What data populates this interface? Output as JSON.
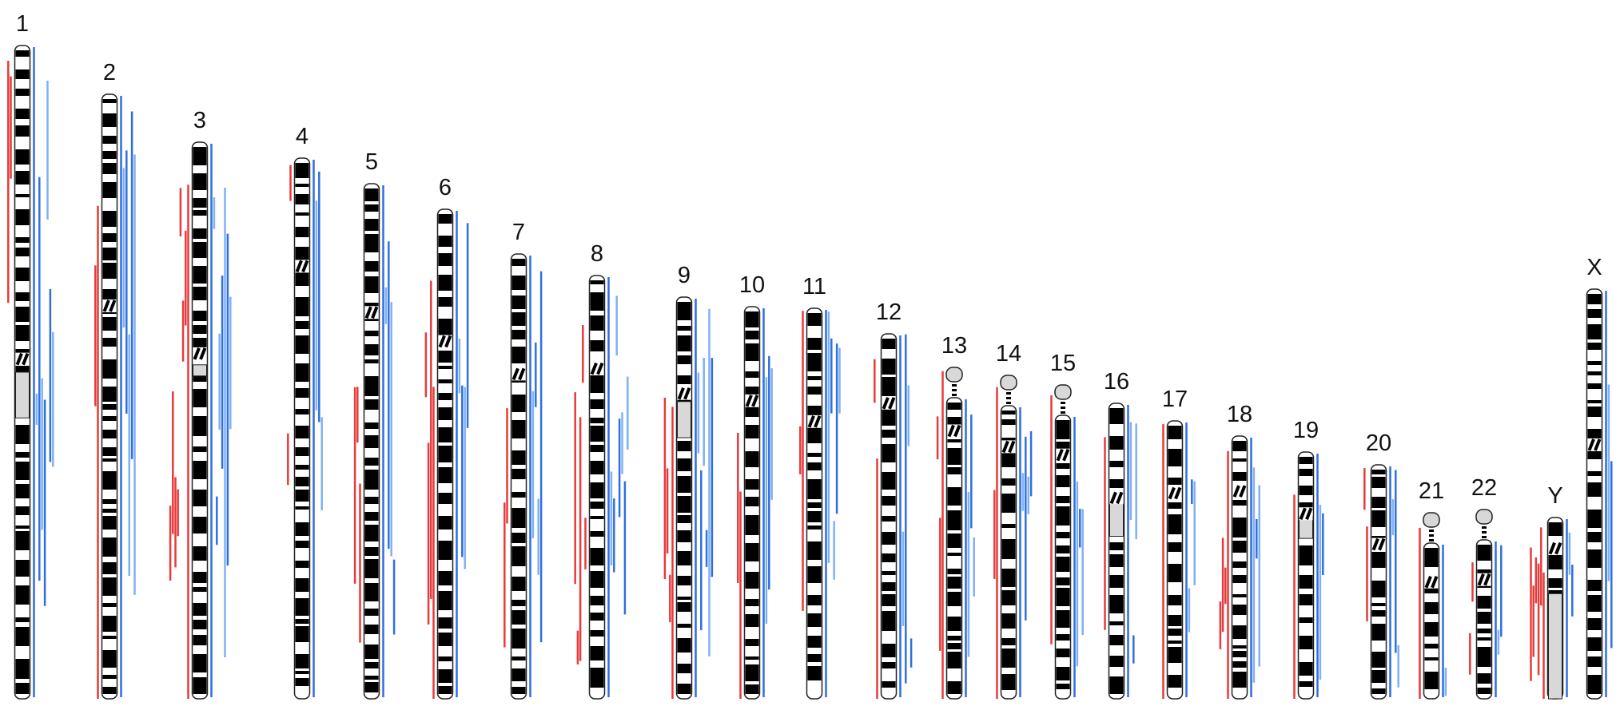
{
  "colors": {
    "loss": "#e83a3a",
    "gain_dark": "#2f6fe0",
    "gain_light": "#7fb0f5",
    "band": "#000000",
    "outline": "#222222",
    "heterochromatin": "#d8d8d8",
    "centromere_fill": "#ffffff"
  },
  "chromosomes": [
    {
      "label": "1",
      "loss_lines": 2,
      "gain_lines": 8
    },
    {
      "label": "2",
      "loss_lines": 2,
      "gain_lines": 6
    },
    {
      "label": "3",
      "loss_lines": 8,
      "gain_lines": 8
    },
    {
      "label": "4",
      "loss_lines": 2,
      "gain_lines": 4
    },
    {
      "label": "5",
      "loss_lines": 3,
      "gain_lines": 5
    },
    {
      "label": "6",
      "loss_lines": 4,
      "gain_lines": 5
    },
    {
      "label": "7",
      "loss_lines": 2,
      "gain_lines": 5
    },
    {
      "label": "8",
      "loss_lines": 5,
      "gain_lines": 8
    },
    {
      "label": "9",
      "loss_lines": 4,
      "gain_lines": 7
    },
    {
      "label": "10",
      "loss_lines": 2,
      "gain_lines": 4
    },
    {
      "label": "11",
      "loss_lines": 2,
      "gain_lines": 6
    },
    {
      "label": "12",
      "loss_lines": 2,
      "gain_lines": 5
    },
    {
      "label": "13",
      "loss_lines": 3,
      "gain_lines": 4
    },
    {
      "label": "14",
      "loss_lines": 2,
      "gain_lines": 5
    },
    {
      "label": "15",
      "loss_lines": 1,
      "gain_lines": 4
    },
    {
      "label": "16",
      "loss_lines": 1,
      "gain_lines": 4
    },
    {
      "label": "17",
      "loss_lines": 1,
      "gain_lines": 4
    },
    {
      "label": "18",
      "loss_lines": 4,
      "gain_lines": 4
    },
    {
      "label": "19",
      "loss_lines": 1,
      "gain_lines": 3
    },
    {
      "label": "20",
      "loss_lines": 2,
      "gain_lines": 4
    },
    {
      "label": "21",
      "loss_lines": 1,
      "gain_lines": 2
    },
    {
      "label": "22",
      "loss_lines": 2,
      "gain_lines": 3
    },
    {
      "label": "Y",
      "loss_lines": 6,
      "gain_lines": 3
    },
    {
      "label": "X",
      "loss_lines": 0,
      "gain_lines": 3
    }
  ]
}
